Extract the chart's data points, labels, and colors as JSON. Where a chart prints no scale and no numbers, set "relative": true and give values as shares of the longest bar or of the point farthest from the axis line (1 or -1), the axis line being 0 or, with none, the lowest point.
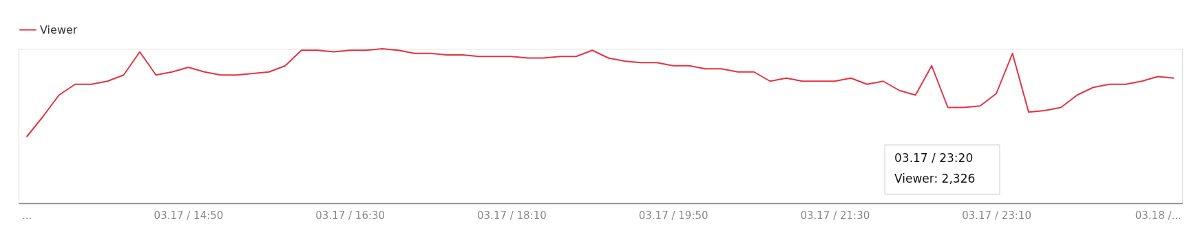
{
  "chart_data": {
    "type": "line",
    "relative": true,
    "legend": "top left",
    "categories": [
      "...",
      null,
      null,
      null,
      null,
      null,
      null,
      null,
      null,
      null,
      "03.17 / 14:50",
      null,
      null,
      null,
      null,
      null,
      null,
      null,
      null,
      null,
      "03.17 / 16:30",
      null,
      null,
      null,
      null,
      null,
      null,
      null,
      null,
      null,
      "03.17 / 18:10",
      null,
      null,
      null,
      null,
      null,
      null,
      null,
      null,
      null,
      "03.17 / 19:50",
      null,
      null,
      null,
      null,
      null,
      null,
      null,
      null,
      null,
      "03.17 / 21:30",
      null,
      null,
      null,
      null,
      null,
      null,
      null,
      null,
      null,
      "03.17 / 23:10",
      null,
      null,
      null,
      null,
      null,
      null,
      null,
      null,
      null,
      "03.18 /...",
      null
    ],
    "series": [
      {
        "name": "Viewer",
        "color": "#e5323f",
        "values": [
          0.43,
          0.56,
          0.7,
          0.77,
          0.77,
          0.79,
          0.83,
          0.98,
          0.83,
          0.85,
          0.88,
          0.85,
          0.83,
          0.83,
          0.84,
          0.85,
          0.89,
          0.99,
          0.99,
          0.98,
          0.99,
          0.99,
          1,
          0.99,
          0.97,
          0.97,
          0.96,
          0.96,
          0.95,
          0.95,
          0.95,
          0.94,
          0.94,
          0.95,
          0.95,
          0.99,
          0.94,
          0.92,
          0.91,
          0.91,
          0.89,
          0.89,
          0.87,
          0.87,
          0.85,
          0.85,
          0.79,
          0.81,
          0.79,
          0.79,
          0.79,
          0.81,
          0.77,
          0.79,
          0.73,
          0.7,
          0.89,
          0.62,
          0.62,
          0.63,
          0.71,
          0.97,
          0.59,
          0.6,
          0.62,
          0.7,
          0.75,
          0.77,
          0.77,
          0.79,
          0.82,
          0.81
        ]
      }
    ],
    "annotations": [
      "03.17 / 23:20",
      "Viewer: 2,326"
    ]
  }
}
